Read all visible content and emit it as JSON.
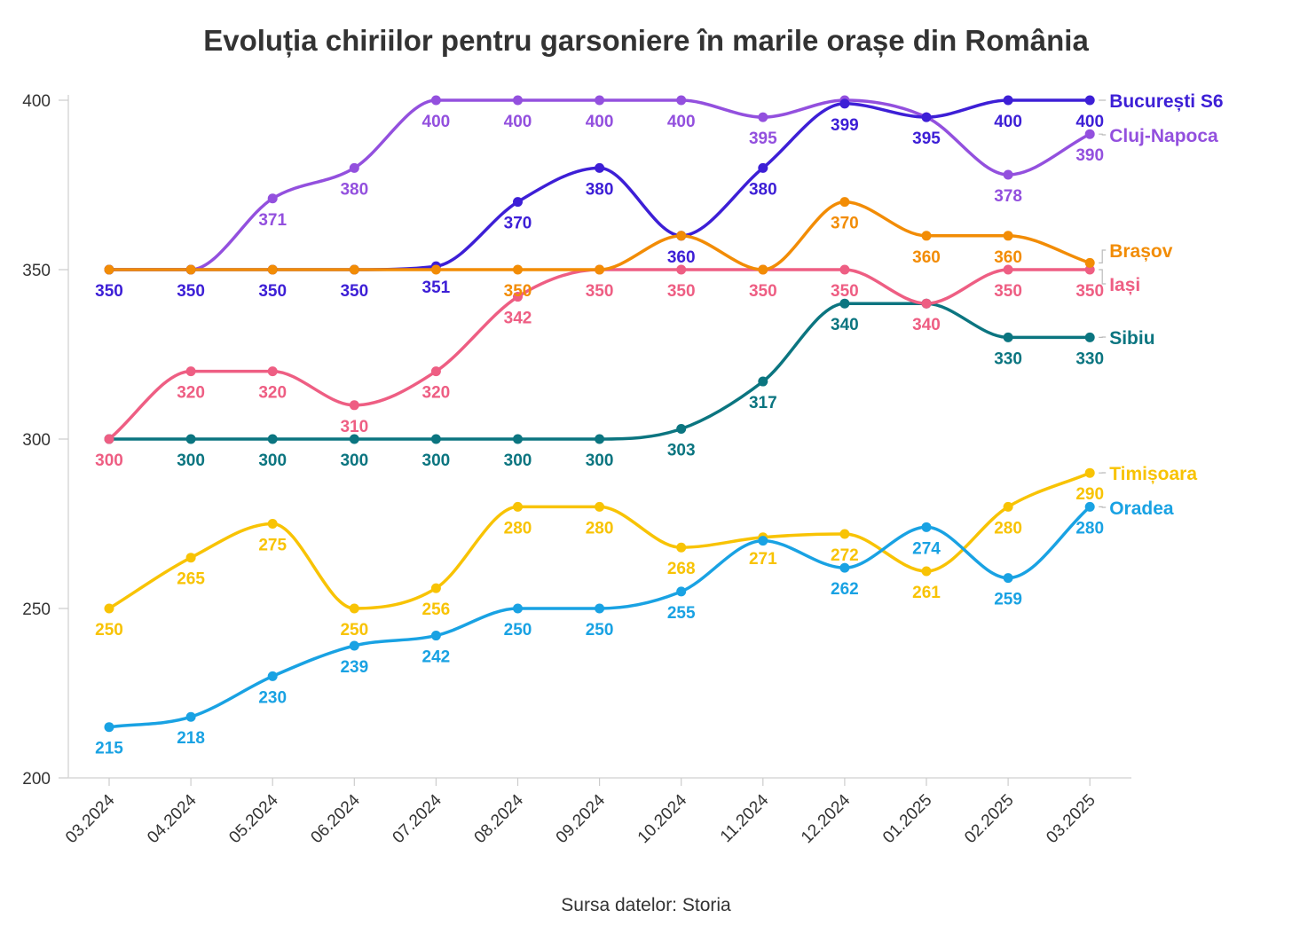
{
  "chart_data": {
    "type": "line",
    "title": "Evoluția chiriilor pentru garsoniere în marile orașe din România",
    "source": "Sursa datelor: Storia",
    "ylim": [
      200,
      400
    ],
    "yticks": [
      "200",
      "250",
      "300",
      "350",
      "400"
    ],
    "categories": [
      "03.2024",
      "04.2024",
      "05.2024",
      "06.2024",
      "07.2024",
      "08.2024",
      "09.2024",
      "10.2024",
      "11.2024",
      "12.2024",
      "01.2025",
      "02.2025",
      "03.2025"
    ],
    "grid": false,
    "legend": "direct-labels-right",
    "series": [
      {
        "name": "București S6",
        "color": "#3D1FD6",
        "values": [
          350,
          350,
          350,
          350,
          351,
          370,
          380,
          360,
          380,
          399,
          395,
          400,
          400
        ]
      },
      {
        "name": "Cluj-Napoca",
        "color": "#9350DE",
        "values": [
          350,
          350,
          371,
          380,
          400,
          400,
          400,
          400,
          395,
          400,
          395,
          378,
          390
        ]
      },
      {
        "name": "Brașov",
        "color": "#F28C05",
        "values": [
          350,
          350,
          350,
          350,
          350,
          350,
          350,
          360,
          350,
          370,
          360,
          360,
          352
        ]
      },
      {
        "name": "Iași",
        "color": "#EE5E83",
        "values": [
          300,
          320,
          320,
          310,
          320,
          342,
          350,
          350,
          350,
          350,
          340,
          350,
          350
        ]
      },
      {
        "name": "Sibiu",
        "color": "#0B7580",
        "values": [
          300,
          300,
          300,
          300,
          300,
          300,
          300,
          303,
          317,
          340,
          340,
          330,
          330
        ]
      },
      {
        "name": "Timișoara",
        "color": "#F8C304",
        "values": [
          250,
          265,
          275,
          250,
          256,
          280,
          280,
          268,
          271,
          272,
          261,
          280,
          290
        ]
      },
      {
        "name": "Oradea",
        "color": "#19A2E3",
        "values": [
          215,
          218,
          230,
          239,
          242,
          250,
          250,
          255,
          270,
          262,
          274,
          259,
          280
        ]
      }
    ],
    "data_labels": [
      {
        "series": 0,
        "labels": [
          "350",
          "350",
          "350",
          "350",
          "351",
          "370",
          "380",
          "360",
          "380",
          "399",
          "395",
          "400",
          "400"
        ]
      },
      {
        "series": 1,
        "labels": [
          "",
          "",
          "371",
          "380",
          "400",
          "400",
          "400",
          "400",
          "395",
          "",
          "",
          "378",
          "390"
        ]
      },
      {
        "series": 2,
        "labels": [
          "",
          "",
          "",
          "",
          "",
          "350",
          "",
          "",
          "",
          "370",
          "360",
          "360",
          ""
        ]
      },
      {
        "series": 3,
        "labels": [
          "300",
          "320",
          "320",
          "310",
          "320",
          "342",
          "350",
          "350",
          "350",
          "350",
          "340",
          "350",
          "350"
        ]
      },
      {
        "series": 4,
        "labels": [
          "",
          "300",
          "300",
          "300",
          "300",
          "300",
          "300",
          "303",
          "317",
          "340",
          "",
          "330",
          "330"
        ]
      },
      {
        "series": 5,
        "labels": [
          "250",
          "265",
          "275",
          "250",
          "256",
          "280",
          "280",
          "268",
          "271",
          "272",
          "261",
          "280",
          "290"
        ]
      },
      {
        "series": 6,
        "labels": [
          "215",
          "218",
          "230",
          "239",
          "242",
          "250",
          "250",
          "255",
          "",
          "262",
          "274",
          "259",
          "280"
        ]
      }
    ]
  }
}
